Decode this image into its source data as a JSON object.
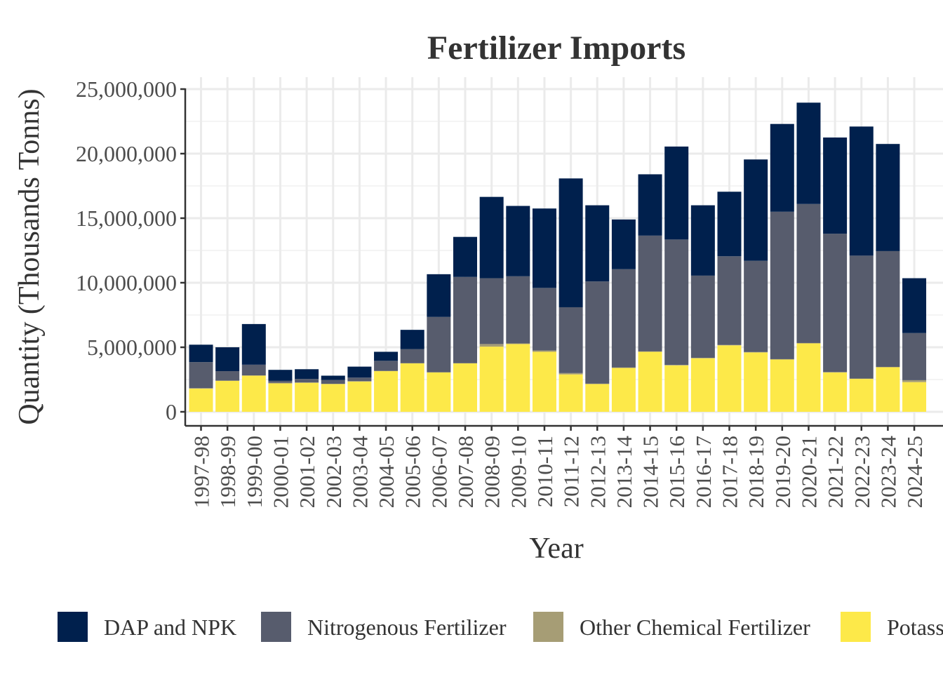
{
  "chart_data": {
    "type": "bar",
    "stacked": true,
    "title": "Fertilizer Imports",
    "xlabel": "Year",
    "ylabel": "Quantity (Thousands Tonns)",
    "ylim": [
      0,
      25000000
    ],
    "yticks": [
      0,
      5000000,
      10000000,
      15000000,
      20000000,
      25000000
    ],
    "ytick_labels": [
      "0",
      "5,000,000",
      "10,000,000",
      "15,000,000",
      "20,000,000",
      "25,000,000"
    ],
    "grid": true,
    "legend_position": "bottom",
    "categories": [
      "1997-98",
      "1998-99",
      "1999-00",
      "2000-01",
      "2001-02",
      "2002-03",
      "2003-04",
      "2004-05",
      "2005-06",
      "2006-07",
      "2007-08",
      "2008-09",
      "2009-10",
      "2010-11",
      "2011-12",
      "2012-13",
      "2013-14",
      "2014-15",
      "2015-16",
      "2016-17",
      "2017-18",
      "2018-19",
      "2019-20",
      "2020-21",
      "2021-22",
      "2022-23",
      "2023-24",
      "2024-25"
    ],
    "series": [
      {
        "name": "Potassic Fertilizer",
        "color": "#FDE949",
        "values": [
          1800000,
          2400000,
          2800000,
          2200000,
          2250000,
          2150000,
          2350000,
          3150000,
          3750000,
          3050000,
          3750000,
          5050000,
          5250000,
          4650000,
          2900000,
          2150000,
          3400000,
          4650000,
          3600000,
          4150000,
          5150000,
          4600000,
          4050000,
          5300000,
          3050000,
          2550000,
          3450000,
          2300000
        ]
      },
      {
        "name": "Other Chemical Fertilizer",
        "color": "#A69D75",
        "values": [
          30000,
          20000,
          20000,
          50000,
          20000,
          20000,
          20000,
          20000,
          20000,
          20000,
          20000,
          200000,
          50000,
          100000,
          100000,
          30000,
          30000,
          30000,
          30000,
          30000,
          30000,
          30000,
          30000,
          30000,
          30000,
          30000,
          30000,
          150000
        ]
      },
      {
        "name": "Nitrogenous Fertilizer",
        "color": "#575C6D",
        "values": [
          2020000,
          730000,
          830000,
          150000,
          280000,
          300000,
          280000,
          780000,
          1090000,
          4280000,
          6680000,
          5100000,
          5200000,
          4850000,
          5100000,
          7920000,
          7620000,
          8970000,
          9720000,
          6370000,
          6870000,
          7070000,
          11420000,
          10770000,
          10720000,
          9520000,
          8970000,
          3650000
        ]
      },
      {
        "name": "DAP and NPK",
        "color": "#00204D",
        "values": [
          1350000,
          1850000,
          3150000,
          850000,
          750000,
          330000,
          850000,
          700000,
          1490000,
          3310000,
          3100000,
          6300000,
          5450000,
          6150000,
          9980000,
          5900000,
          3850000,
          4750000,
          7200000,
          5450000,
          5000000,
          7850000,
          6800000,
          7850000,
          7450000,
          10000000,
          8300000,
          4250000
        ]
      }
    ],
    "legend": [
      "DAP and NPK",
      "Nitrogenous Fertilizer",
      "Other Chemical Fertilizer",
      "Potassic Fertilizer"
    ]
  }
}
